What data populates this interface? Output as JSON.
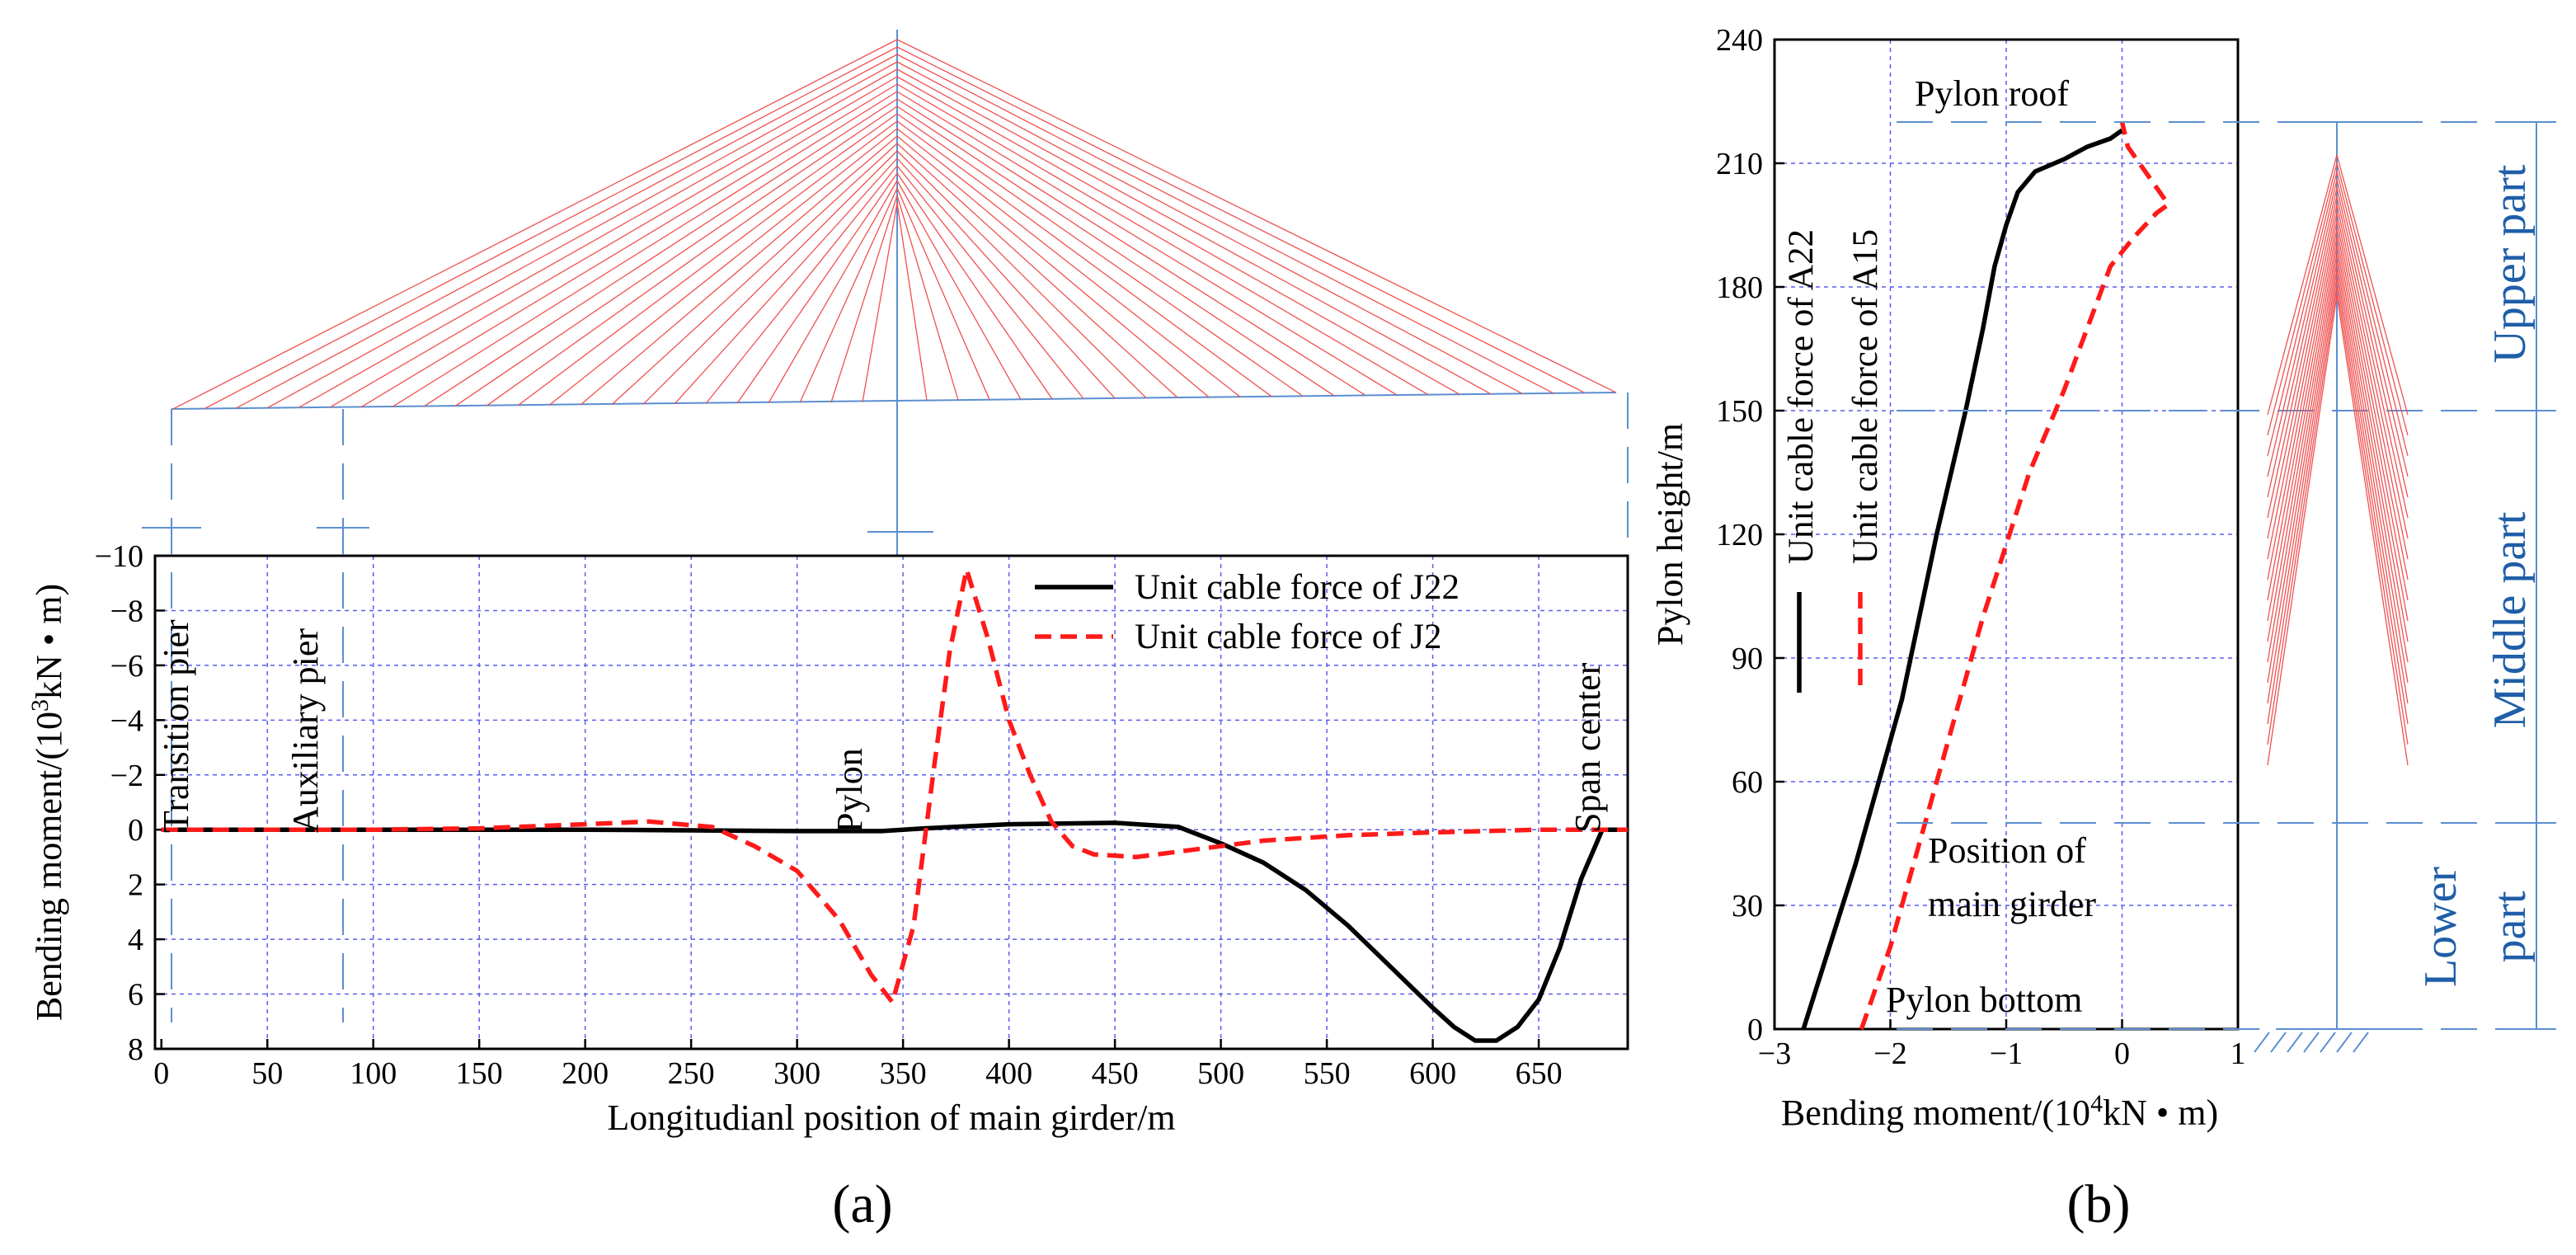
{
  "chart_data": [
    {
      "id": "a",
      "type": "line",
      "panel_label": "(a)",
      "xlabel": "Longitudianl position of main girder/m",
      "ylabel": "Bending moment/(10³kN • m)",
      "ylabel_parts": [
        "Bending moment/(10",
        "3",
        "kN • m)"
      ],
      "xlim": [
        -3,
        692
      ],
      "ylim": [
        -10,
        8
      ],
      "y_inverted": true,
      "xticks": [
        0,
        50,
        100,
        150,
        200,
        250,
        300,
        350,
        400,
        450,
        500,
        550,
        600,
        650
      ],
      "yticks": [
        -10,
        -8,
        -6,
        -4,
        -2,
        0,
        2,
        4,
        6,
        8
      ],
      "grid": true,
      "legend_position": "top-right",
      "annotations": [
        "Transition pier",
        "Auxiliary pier",
        "Pylon",
        "Span center"
      ],
      "series": [
        {
          "name": "Unit cable force of J22",
          "style": "solid",
          "color": "#000000",
          "x": [
            0,
            100,
            200,
            300,
            340,
            360,
            400,
            450,
            480,
            500,
            520,
            540,
            560,
            580,
            600,
            610,
            620,
            630,
            640,
            650,
            660,
            670,
            680,
            692
          ],
          "y": [
            0,
            0,
            0,
            0.05,
            0.05,
            -0.05,
            -0.2,
            -0.25,
            -0.1,
            0.5,
            1.2,
            2.2,
            3.5,
            5.0,
            6.5,
            7.2,
            7.7,
            7.7,
            7.2,
            6.2,
            4.3,
            1.8,
            0,
            0
          ]
        },
        {
          "name": "Unit cable force of J2",
          "style": "dashed",
          "color": "#ff1a1a",
          "x": [
            0,
            100,
            150,
            200,
            230,
            260,
            280,
            300,
            320,
            335,
            345,
            355,
            365,
            372,
            380,
            390,
            400,
            410,
            420,
            430,
            440,
            460,
            480,
            520,
            560,
            600,
            650,
            692
          ],
          "y": [
            0,
            0,
            -0.05,
            -0.2,
            -0.3,
            -0.1,
            0.6,
            1.5,
            3.3,
            5.3,
            6.3,
            3.5,
            -2.5,
            -6.5,
            -9.5,
            -7.0,
            -4.0,
            -2.0,
            -0.3,
            0.6,
            0.9,
            1.0,
            0.8,
            0.4,
            0.2,
            0.1,
            0,
            0
          ]
        }
      ]
    },
    {
      "id": "b",
      "type": "line",
      "panel_label": "(b)",
      "xlabel": "Bending moment/(10⁴kN • m)",
      "xlabel_parts": [
        "Bending moment/(10",
        "4",
        "kN • m)"
      ],
      "ylabel": "Pylon height/m",
      "xlim": [
        -3,
        1
      ],
      "ylim": [
        0,
        240
      ],
      "xticks": [
        -3,
        -2,
        -1,
        0,
        1
      ],
      "yticks": [
        0,
        30,
        60,
        90,
        120,
        150,
        180,
        210,
        240
      ],
      "grid": true,
      "legend_position": "top-left, rotated",
      "annotations": [
        "Pylon roof",
        "Position of main girder",
        "Pylon bottom"
      ],
      "annotation_lines": [
        "Position of",
        "main girder"
      ],
      "parts": [
        "Upper part",
        "Middle part",
        "Lower part"
      ],
      "lower_part_lines": [
        "Lower",
        "part"
      ],
      "series": [
        {
          "name": "Unit cable force of A22",
          "style": "solid",
          "color": "#000000",
          "x": [
            -2.75,
            -2.3,
            -1.9,
            -1.6,
            -1.35,
            -1.2,
            -1.1,
            -1.0,
            -0.9,
            -0.75,
            -0.5,
            -0.3,
            -0.1,
            0
          ],
          "y": [
            0,
            40,
            80,
            120,
            150,
            170,
            185,
            195,
            203,
            208,
            211,
            214,
            216,
            218
          ]
        },
        {
          "name": "Unit cable force of A15",
          "style": "dashed",
          "color": "#ff1a1a",
          "x": [
            -2.25,
            -2.0,
            -1.6,
            -1.2,
            -0.8,
            -0.5,
            -0.3,
            -0.1,
            0.1,
            0.3,
            0.4,
            0.2,
            0.05,
            0
          ],
          "y": [
            0,
            20,
            60,
            100,
            135,
            155,
            170,
            185,
            192,
            198,
            200,
            208,
            214,
            220
          ]
        }
      ]
    }
  ]
}
